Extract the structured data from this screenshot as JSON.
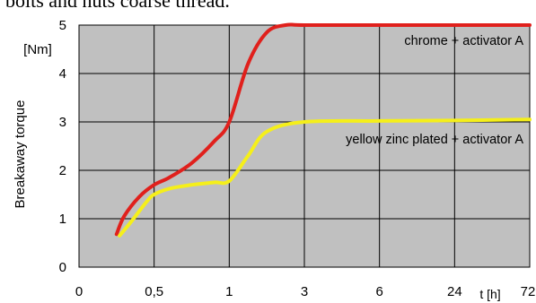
{
  "page": {
    "caption": "bolts and nuts coarse thread."
  },
  "chart_data": {
    "type": "line",
    "ylabel": "Breakaway  torque",
    "y_unit": "[Nm]",
    "xlabel": "t [h]",
    "ylim": [
      0,
      5
    ],
    "y_ticks": [
      "0",
      "1",
      "2",
      "3",
      "4",
      "5"
    ],
    "x_ticks": [
      "0",
      "0,5",
      "1",
      "3",
      "6",
      "24",
      "72"
    ],
    "x_tick_values": [
      0,
      0.5,
      1,
      3,
      6,
      24,
      72
    ],
    "x_scale": "non-uniform (equal spacing between listed ticks)",
    "grid": true,
    "background": "#c0c0c0",
    "series": [
      {
        "name": "chrome + activator A",
        "color": "#e0201c",
        "x": [
          0.25,
          0.3,
          0.4,
          0.5,
          0.6,
          0.75,
          0.9,
          1,
          1.5,
          2,
          2.5,
          3,
          6,
          24,
          72
        ],
        "y": [
          0.68,
          1.05,
          1.45,
          1.7,
          1.85,
          2.15,
          2.6,
          3.0,
          4.2,
          4.85,
          5.0,
          5.0,
          5.0,
          5.0,
          5.0
        ]
      },
      {
        "name": "yellow zinc plated + activator A",
        "color": "#f5ef1a",
        "x": [
          0.27,
          0.35,
          0.45,
          0.5,
          0.6,
          0.75,
          0.9,
          1,
          1.5,
          2,
          3,
          6,
          24,
          72
        ],
        "y": [
          0.65,
          0.95,
          1.35,
          1.5,
          1.62,
          1.7,
          1.75,
          1.78,
          2.3,
          2.8,
          3.0,
          3.02,
          3.03,
          3.05
        ]
      }
    ]
  }
}
